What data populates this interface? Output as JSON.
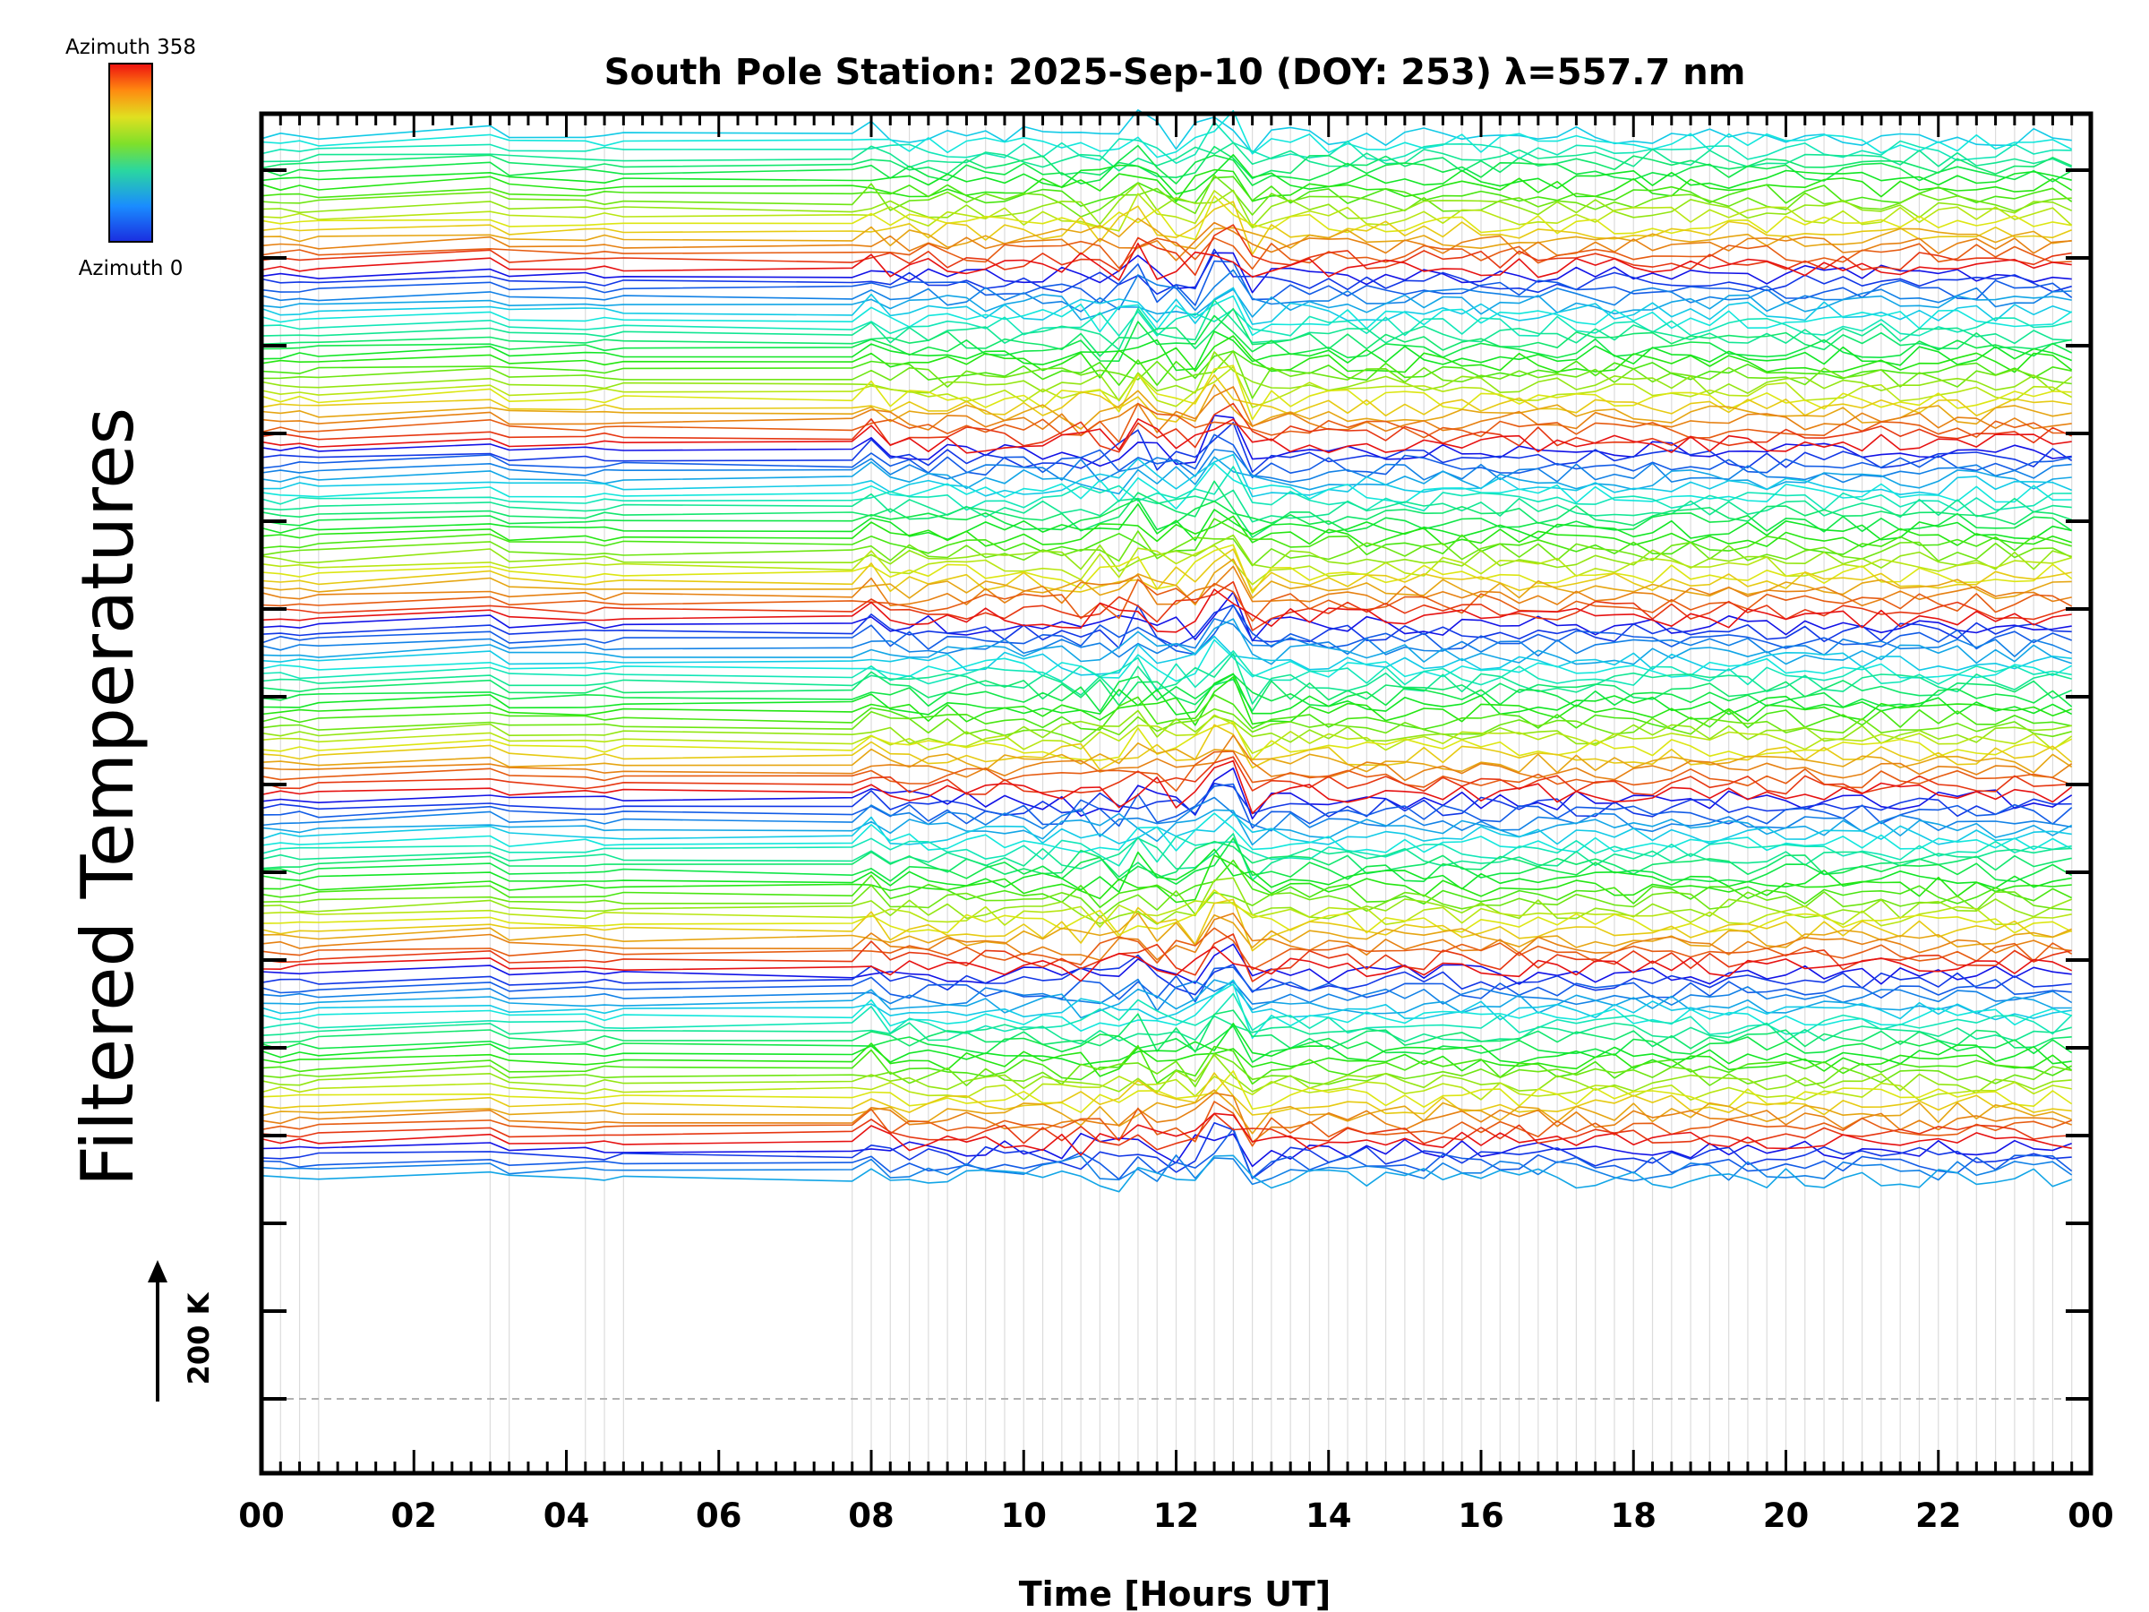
{
  "chart_data": {
    "type": "line",
    "title": "South Pole Station: 2025-Sep-10 (DOY: 253) λ=557.7 nm",
    "xlabel": "Time [Hours UT]",
    "ylabel": "Filtered Temperatures",
    "x_unit": "hours UT",
    "xlim": [
      0,
      24
    ],
    "x_ticks": [
      "00",
      "02",
      "04",
      "06",
      "08",
      "10",
      "12",
      "14",
      "16",
      "18",
      "20",
      "22",
      "00"
    ],
    "scale_bar": {
      "label": "200 K",
      "value_K": 200
    },
    "colorbar": {
      "min_label": "Azimuth 0",
      "max_label": "Azimuth 358",
      "min": 0,
      "max": 358
    },
    "grid": true,
    "n_groups": 6,
    "traces_per_group": 24,
    "group_spacing_K": 400,
    "sample_times_h": [
      0.0,
      0.25,
      0.5,
      0.75,
      3.0,
      3.25,
      4.25,
      4.5,
      4.75,
      7.75,
      8.0,
      8.25,
      8.5,
      8.75,
      9.0,
      9.25,
      9.5,
      9.75,
      10.0,
      10.25,
      10.5,
      10.75,
      11.0,
      11.25,
      11.5,
      11.75,
      12.0,
      12.25,
      12.5,
      12.75,
      13.0,
      13.25,
      13.5,
      13.75,
      14.0,
      14.25,
      14.5,
      14.75,
      15.0,
      15.25,
      15.5,
      15.75,
      16.0,
      16.25,
      16.5,
      16.75,
      17.0,
      17.25,
      17.5,
      17.75,
      18.0,
      18.25,
      18.5,
      18.75,
      19.0,
      19.25,
      19.5,
      19.75,
      20.0,
      20.25,
      20.5,
      20.75,
      21.0,
      21.25,
      21.5,
      21.75,
      22.0,
      22.25,
      22.5,
      22.75,
      23.0,
      23.25,
      23.5,
      23.75
    ],
    "note_series": "144 traces (azimuths 0–358); each trace is a filtered temperature perturbation offset by group"
  }
}
